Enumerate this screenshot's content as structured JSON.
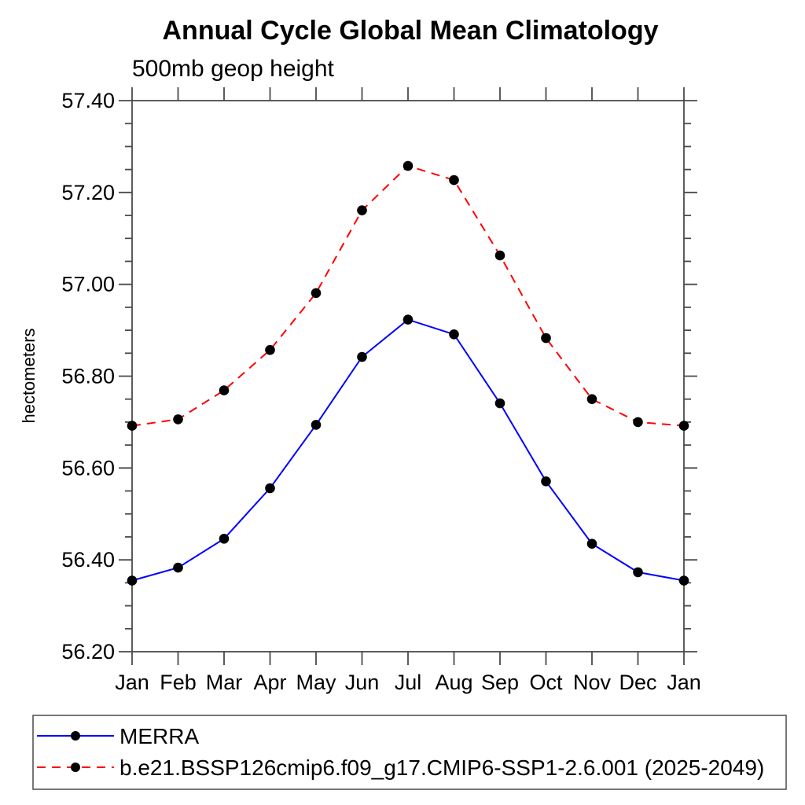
{
  "chart_data": {
    "type": "line",
    "title": "Annual Cycle Global Mean Climatology",
    "subtitle": "500mb geop height",
    "ylabel": "hectometers",
    "categories": [
      "Jan",
      "Feb",
      "Mar",
      "Apr",
      "May",
      "Jun",
      "Jul",
      "Aug",
      "Sep",
      "Oct",
      "Nov",
      "Dec",
      "Jan"
    ],
    "ylim": [
      56.2,
      57.4
    ],
    "ytick_step": 0.2,
    "yminor_step": 0.05,
    "ytick_labels": [
      "57.40",
      "57.20",
      "57.00",
      "56.80",
      "56.60",
      "56.40",
      "56.20"
    ],
    "grid": false,
    "legend_position": "bottom-left-box",
    "axis_color": "#4a4a4a",
    "marker_color": "#000000",
    "series": [
      {
        "name": "MERRA",
        "color": "#0000ff",
        "line_style": "solid",
        "marker": "circle",
        "values": [
          56.355,
          56.383,
          56.446,
          56.556,
          56.694,
          56.842,
          56.923,
          56.891,
          56.741,
          56.571,
          56.435,
          56.373,
          56.355
        ]
      },
      {
        "name": "b.e21.BSSP126cmip6.f09_g17.CMIP6-SSP1-2.6.001 (2025-2049)",
        "color": "#ff0000",
        "line_style": "dashed",
        "marker": "circle",
        "values": [
          56.692,
          56.706,
          56.769,
          56.857,
          56.981,
          57.161,
          57.258,
          57.227,
          57.063,
          56.883,
          56.75,
          56.7,
          56.692
        ]
      }
    ]
  }
}
